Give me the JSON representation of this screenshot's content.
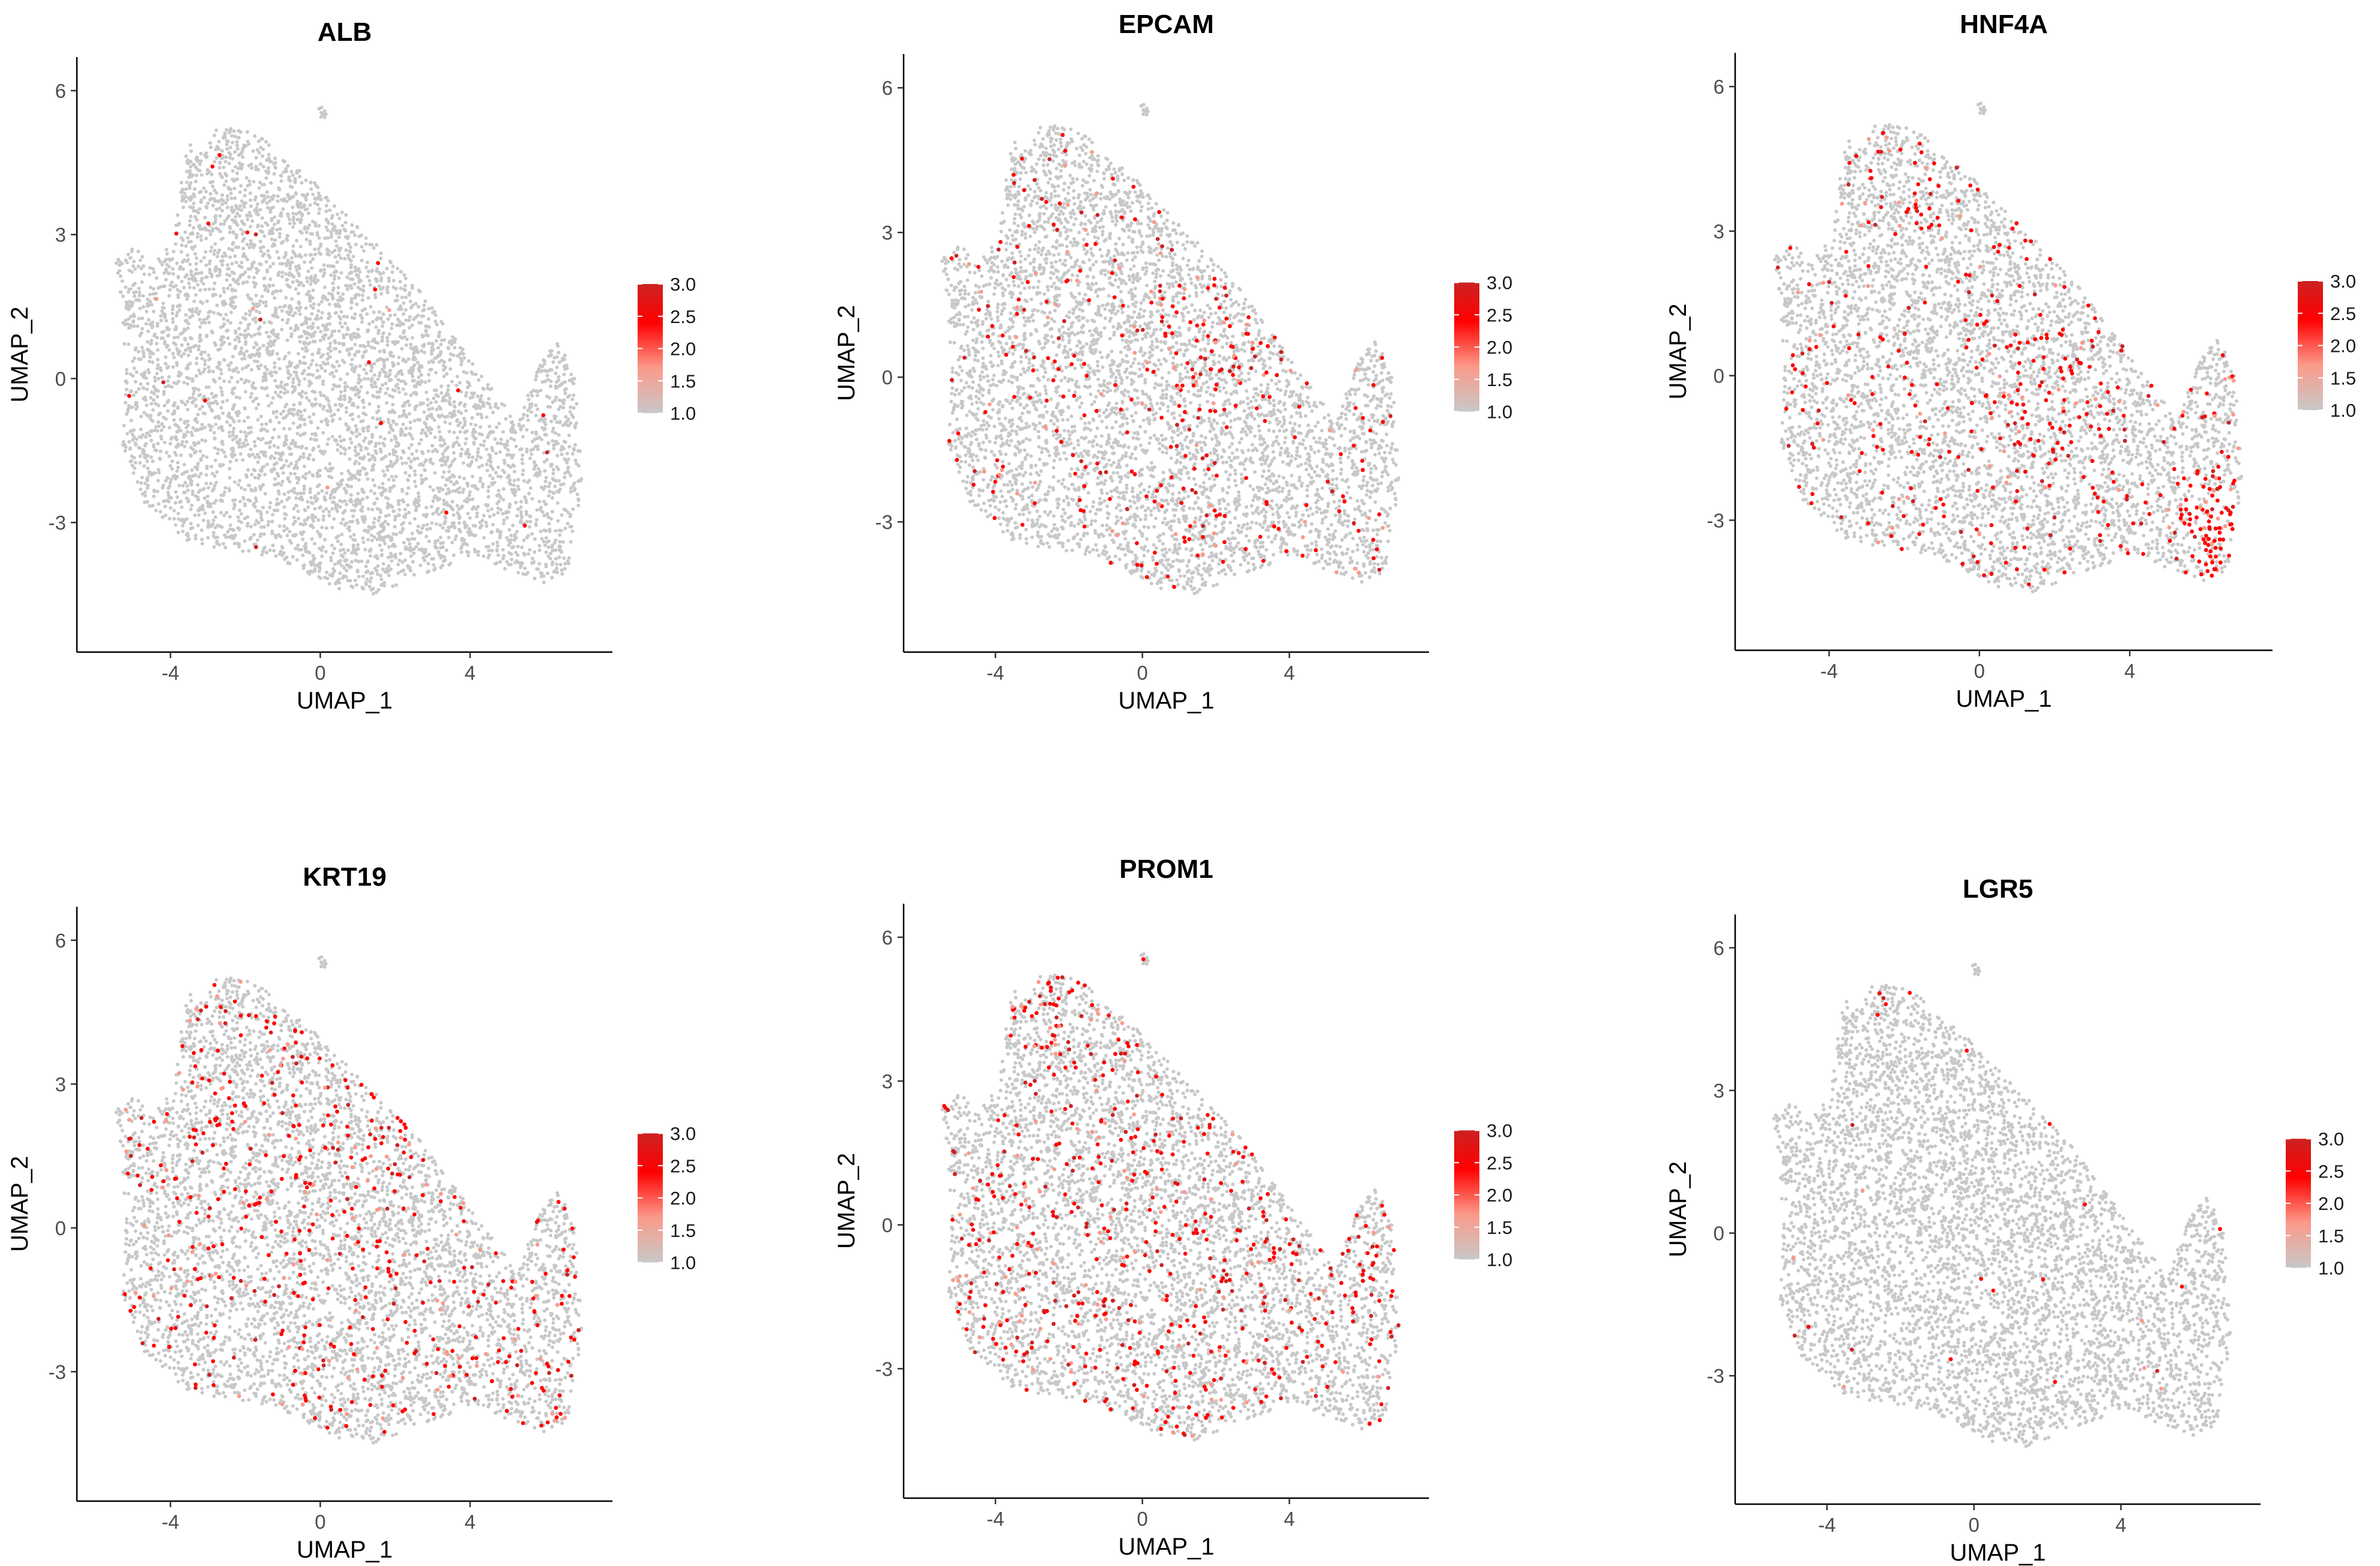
{
  "colors": {
    "low": "#c8c8c8",
    "mid": "#fb9a8a",
    "high": "#ff0000",
    "max": "#cc2222",
    "axis": "#000000",
    "background": "#ffffff"
  },
  "chart_data": [
    {
      "type": "scatter",
      "title": "ALB",
      "xlabel": "UMAP_1",
      "ylabel": "UMAP_2",
      "xlim": [
        -6.5,
        7.8
      ],
      "ylim": [
        -5.7,
        6.7
      ],
      "xticks": [
        -4,
        0,
        4
      ],
      "xtick_labels": [
        "-4",
        "0",
        "4"
      ],
      "yticks": [
        6,
        3,
        0,
        -3
      ],
      "ytick_labels": [
        "6",
        "3",
        "0",
        "-3"
      ],
      "grid": false,
      "legend": {
        "position": "right",
        "min": 1.0,
        "max": 3.0,
        "labels": [
          "3.0",
          "2.5",
          "2.0",
          "1.5",
          "1.0"
        ]
      },
      "expression_fraction": 0.004,
      "hotspots": []
    },
    {
      "type": "scatter",
      "title": "EPCAM",
      "xlabel": "UMAP_1",
      "ylabel": "UMAP_2",
      "xlim": [
        -6.5,
        7.8
      ],
      "ylim": [
        -5.7,
        6.7
      ],
      "xticks": [
        -4,
        0,
        4
      ],
      "xtick_labels": [
        "-4",
        "0",
        "4"
      ],
      "yticks": [
        6,
        3,
        0,
        -3
      ],
      "ytick_labels": [
        "6",
        "3",
        "0",
        "-3"
      ],
      "grid": false,
      "legend": {
        "position": "right",
        "min": 1.0,
        "max": 3.0,
        "labels": [
          "3.0",
          "2.5",
          "2.0",
          "1.5",
          "1.0"
        ]
      },
      "expression_fraction": 0.05,
      "hotspots": [
        [
          2.0,
          0.5,
          2.5,
          0.18
        ],
        [
          1.5,
          -2.6,
          1.8,
          0.14
        ],
        [
          5.8,
          -2.5,
          0.9,
          0.2
        ]
      ]
    },
    {
      "type": "scatter",
      "title": "HNF4A",
      "xlabel": "UMAP_1",
      "ylabel": "UMAP_2",
      "xlim": [
        -6.5,
        7.8
      ],
      "ylim": [
        -5.7,
        6.7
      ],
      "xticks": [
        -4,
        0,
        4
      ],
      "xtick_labels": [
        "-4",
        "0",
        "4"
      ],
      "yticks": [
        6,
        3,
        0,
        -3
      ],
      "ytick_labels": [
        "6",
        "3",
        "0",
        "-3"
      ],
      "grid": false,
      "legend": {
        "position": "right",
        "min": 1.0,
        "max": 3.0,
        "labels": [
          "3.0",
          "2.5",
          "2.0",
          "1.5",
          "1.0"
        ]
      },
      "expression_fraction": 0.06,
      "hotspots": [
        [
          6.2,
          -3.0,
          1.1,
          0.85
        ],
        [
          -1.5,
          3.5,
          1.0,
          0.22
        ],
        [
          1.5,
          -0.8,
          2.5,
          0.2
        ]
      ]
    },
    {
      "type": "scatter",
      "title": "KRT19",
      "xlabel": "UMAP_1",
      "ylabel": "UMAP_2",
      "xlim": [
        -6.5,
        7.8
      ],
      "ylim": [
        -5.7,
        6.7
      ],
      "xticks": [
        -4,
        0,
        4
      ],
      "xtick_labels": [
        "-4",
        "0",
        "4"
      ],
      "yticks": [
        6,
        3,
        0,
        -3
      ],
      "ytick_labels": [
        "6",
        "3",
        "0",
        "-3"
      ],
      "grid": false,
      "legend": {
        "position": "right",
        "min": 1.0,
        "max": 3.0,
        "labels": [
          "3.0",
          "2.5",
          "2.0",
          "1.5",
          "1.0"
        ]
      },
      "expression_fraction": 0.09,
      "hotspots": [
        [
          2.0,
          2.0,
          1.2,
          0.35
        ],
        [
          0.0,
          -2.8,
          1.5,
          0.2
        ]
      ]
    },
    {
      "type": "scatter",
      "title": "PROM1",
      "xlabel": "UMAP_1",
      "ylabel": "UMAP_2",
      "xlim": [
        -6.5,
        7.8
      ],
      "ylim": [
        -5.7,
        6.7
      ],
      "xticks": [
        -4,
        0,
        4
      ],
      "xtick_labels": [
        "-4",
        "0",
        "4"
      ],
      "yticks": [
        6,
        3,
        0,
        -3
      ],
      "ytick_labels": [
        "6",
        "3",
        "0",
        "-3"
      ],
      "grid": false,
      "legend": {
        "position": "right",
        "min": 1.0,
        "max": 3.0,
        "labels": [
          "3.0",
          "2.5",
          "2.0",
          "1.5",
          "1.0"
        ]
      },
      "expression_fraction": 0.1,
      "hotspots": [
        [
          -2.5,
          4.5,
          1.2,
          0.3
        ],
        [
          6.0,
          -1.5,
          0.8,
          0.25
        ]
      ]
    },
    {
      "type": "scatter",
      "title": "LGR5",
      "xlabel": "UMAP_1",
      "ylabel": "UMAP_2",
      "xlim": [
        -6.5,
        7.8
      ],
      "ylim": [
        -5.7,
        6.7
      ],
      "xticks": [
        -4,
        0,
        4
      ],
      "xtick_labels": [
        "-4",
        "0",
        "4"
      ],
      "yticks": [
        6,
        3,
        0,
        -3
      ],
      "ytick_labels": [
        "6",
        "3",
        "0",
        "-3"
      ],
      "grid": false,
      "legend": {
        "position": "right",
        "min": 1.0,
        "max": 3.0,
        "labels": [
          "3.0",
          "2.5",
          "2.0",
          "1.5",
          "1.0"
        ]
      },
      "expression_fraction": 0.004,
      "hotspots": [
        [
          -2.2,
          4.8,
          0.8,
          0.05
        ]
      ]
    }
  ],
  "umap_shape": {
    "outline": [
      [
        -3.5,
        5.0
      ],
      [
        -2.4,
        5.3
      ],
      [
        -1.5,
        5.0
      ],
      [
        0.0,
        4.0
      ],
      [
        1.5,
        2.8
      ],
      [
        2.8,
        1.7
      ],
      [
        4.0,
        0.4
      ],
      [
        5.3,
        -0.9
      ],
      [
        5.8,
        0.3
      ],
      [
        6.4,
        0.8
      ],
      [
        6.8,
        0.0
      ],
      [
        7.0,
        -2.2
      ],
      [
        6.6,
        -4.1
      ],
      [
        5.8,
        -4.3
      ],
      [
        5.0,
        -4.0
      ],
      [
        4.2,
        -3.7
      ],
      [
        3.0,
        -4.0
      ],
      [
        1.5,
        -4.5
      ],
      [
        0.5,
        -4.4
      ],
      [
        -1.0,
        -3.8
      ],
      [
        -2.3,
        -3.6
      ],
      [
        -3.6,
        -3.4
      ],
      [
        -4.8,
        -2.5
      ],
      [
        -5.3,
        -1.5
      ],
      [
        -5.2,
        0.0
      ],
      [
        -5.3,
        1.5
      ],
      [
        -5.5,
        2.6
      ],
      [
        -5.0,
        2.8
      ],
      [
        -4.5,
        2.3
      ],
      [
        -3.9,
        3.0
      ],
      [
        -3.7,
        4.2
      ]
    ],
    "satellite": [
      [
        -0.1,
        5.5
      ],
      [
        0.0,
        5.6
      ]
    ]
  }
}
